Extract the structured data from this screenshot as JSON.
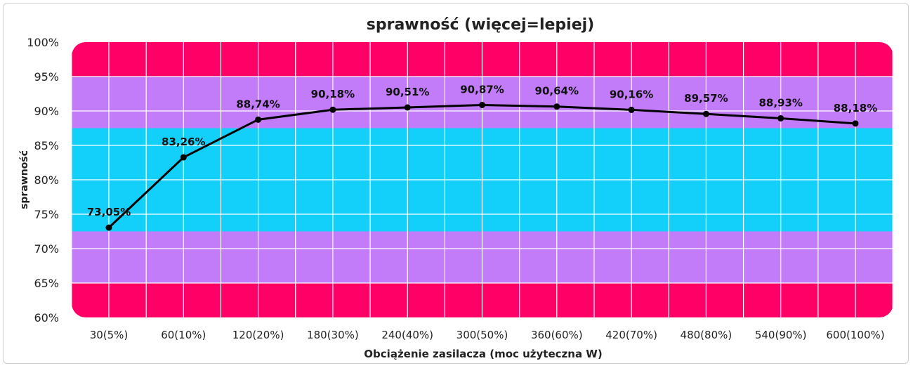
{
  "chart_data": {
    "type": "line",
    "title": "sprawność (więcej=lepiej)",
    "xlabel": "Obciążenie zasilacza (moc użyteczna W)",
    "ylabel": "sprawność",
    "ylim": [
      60,
      100
    ],
    "y_ticks": [
      "60%",
      "65%",
      "70%",
      "75%",
      "80%",
      "85%",
      "90%",
      "95%",
      "100%"
    ],
    "categories": [
      "30(5%)",
      "60(10%)",
      "120(20%)",
      "180(30%)",
      "240(40%)",
      "300(50%)",
      "360(60%)",
      "420(70%)",
      "480(80%)",
      "540(90%)",
      "600(100%)"
    ],
    "values": [
      73.05,
      83.26,
      88.74,
      90.18,
      90.51,
      90.87,
      90.64,
      90.16,
      89.57,
      88.93,
      88.18
    ],
    "data_labels": [
      "73,05%",
      "83,26%",
      "88,74%",
      "90,18%",
      "90,51%",
      "90,87%",
      "90,64%",
      "90,16%",
      "89,57%",
      "88,93%",
      "88,18%"
    ],
    "bands": [
      {
        "from": 60,
        "to": 65,
        "color": "#ff0066"
      },
      {
        "from": 65,
        "to": 72.5,
        "color": "#c27cfa"
      },
      {
        "from": 72.5,
        "to": 87.5,
        "color": "#12d0fa"
      },
      {
        "from": 87.5,
        "to": 95,
        "color": "#c27cfa"
      },
      {
        "from": 95,
        "to": 100,
        "color": "#ff0066"
      }
    ],
    "line_color": "#000000",
    "grid": true,
    "legend": "none"
  }
}
